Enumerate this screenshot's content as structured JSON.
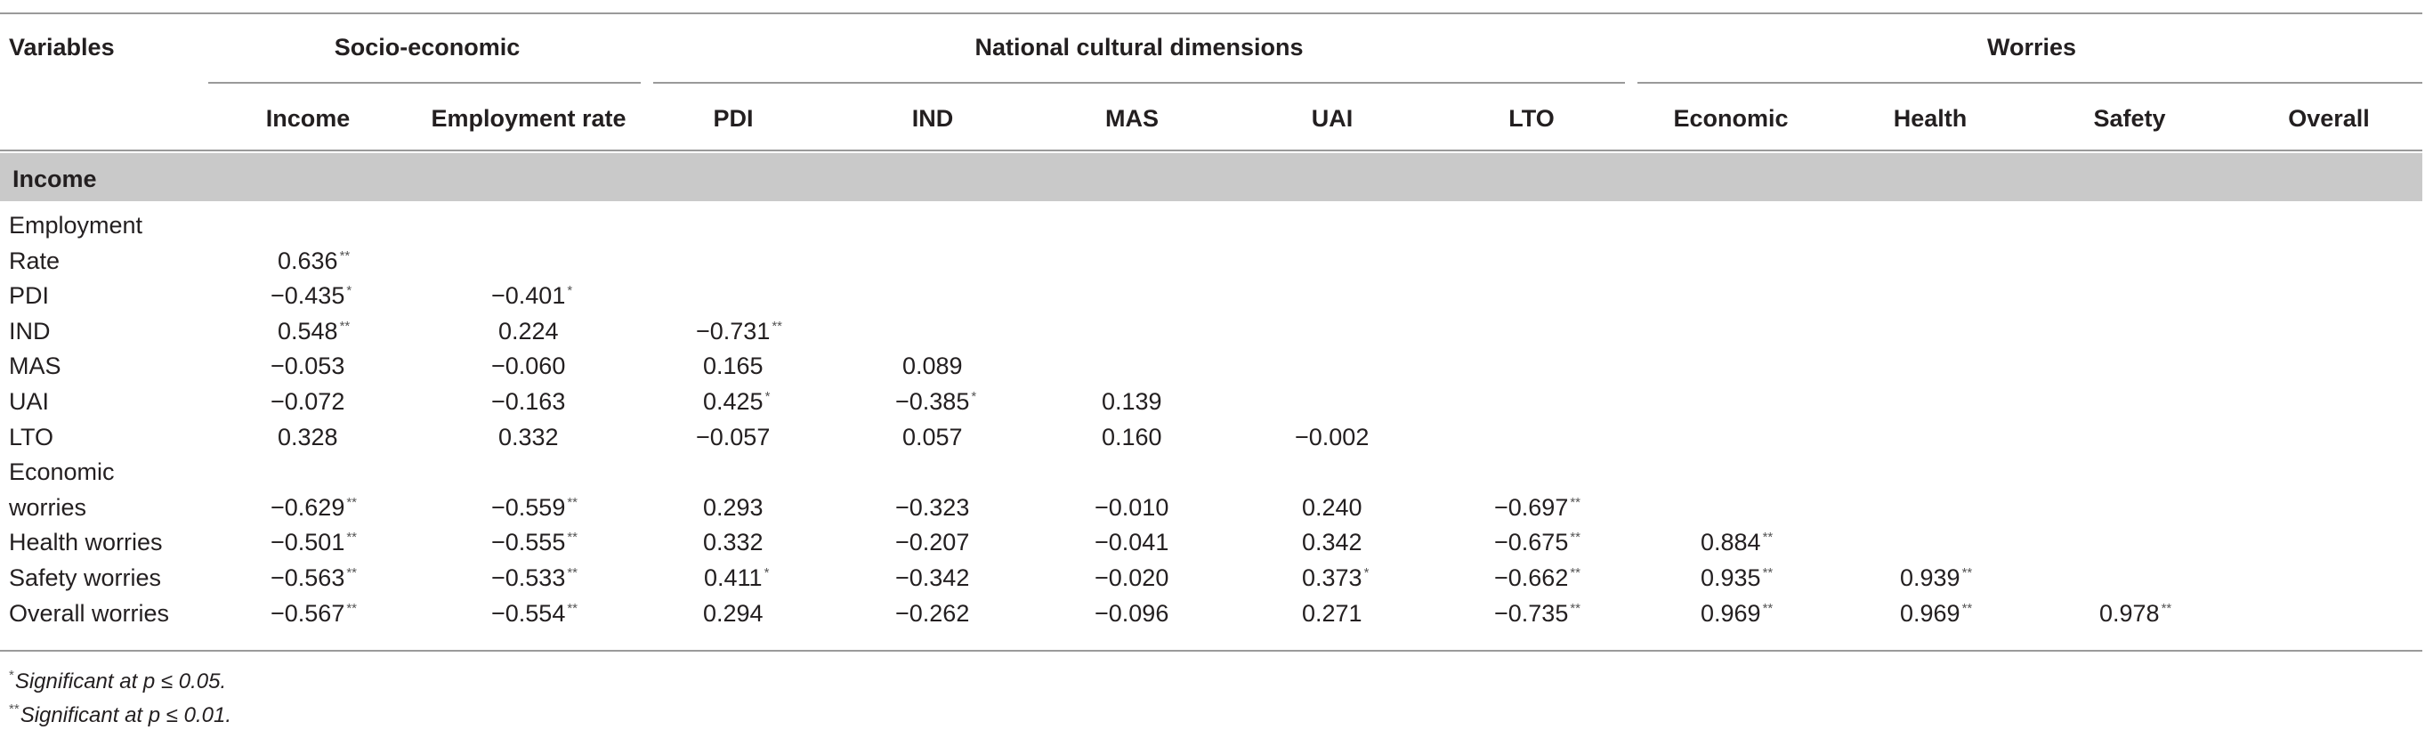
{
  "header": {
    "variables": "Variables",
    "groups": [
      "Socio-economic",
      "National cultural dimensions",
      "Worries"
    ],
    "columns": [
      "Income",
      "Employment rate",
      "PDI",
      "IND",
      "MAS",
      "UAI",
      "LTO",
      "Economic",
      "Health",
      "Safety",
      "Overall"
    ]
  },
  "band_label": "Income",
  "row_labels": [
    "Employment",
    "Rate",
    "PDI",
    "IND",
    "MAS",
    "UAI",
    "LTO",
    "Economic",
    "worries",
    "Health worries",
    "Safety worries",
    "Overall worries"
  ],
  "rows": [
    [],
    [
      {
        "v": "0.636",
        "s": "**"
      }
    ],
    [
      {
        "v": "−0.435",
        "s": "*"
      },
      {
        "v": "−0.401",
        "s": "*"
      }
    ],
    [
      {
        "v": "0.548",
        "s": "**"
      },
      {
        "v": "0.224",
        "s": ""
      },
      {
        "v": "−0.731",
        "s": "**"
      }
    ],
    [
      {
        "v": "−0.053",
        "s": ""
      },
      {
        "v": "−0.060",
        "s": ""
      },
      {
        "v": "0.165",
        "s": ""
      },
      {
        "v": "0.089",
        "s": ""
      }
    ],
    [
      {
        "v": "−0.072",
        "s": ""
      },
      {
        "v": "−0.163",
        "s": ""
      },
      {
        "v": "0.425",
        "s": "*"
      },
      {
        "v": "−0.385",
        "s": "*"
      },
      {
        "v": "0.139",
        "s": ""
      }
    ],
    [
      {
        "v": "0.328",
        "s": ""
      },
      {
        "v": "0.332",
        "s": ""
      },
      {
        "v": "−0.057",
        "s": ""
      },
      {
        "v": "0.057",
        "s": ""
      },
      {
        "v": "0.160",
        "s": ""
      },
      {
        "v": "−0.002",
        "s": ""
      }
    ],
    [],
    [
      {
        "v": "−0.629",
        "s": "**"
      },
      {
        "v": "−0.559",
        "s": "**"
      },
      {
        "v": "0.293",
        "s": ""
      },
      {
        "v": "−0.323",
        "s": ""
      },
      {
        "v": "−0.010",
        "s": ""
      },
      {
        "v": "0.240",
        "s": ""
      },
      {
        "v": "−0.697",
        "s": "**"
      }
    ],
    [
      {
        "v": "−0.501",
        "s": "**"
      },
      {
        "v": "−0.555",
        "s": "**"
      },
      {
        "v": "0.332",
        "s": ""
      },
      {
        "v": "−0.207",
        "s": ""
      },
      {
        "v": "−0.041",
        "s": ""
      },
      {
        "v": "0.342",
        "s": ""
      },
      {
        "v": "−0.675",
        "s": "**"
      },
      {
        "v": "0.884",
        "s": "**"
      }
    ],
    [
      {
        "v": "−0.563",
        "s": "**"
      },
      {
        "v": "−0.533",
        "s": "**"
      },
      {
        "v": "0.411",
        "s": "*"
      },
      {
        "v": "−0.342",
        "s": ""
      },
      {
        "v": "−0.020",
        "s": ""
      },
      {
        "v": "0.373",
        "s": "*"
      },
      {
        "v": "−0.662",
        "s": "**"
      },
      {
        "v": "0.935",
        "s": "**"
      },
      {
        "v": "0.939",
        "s": "**"
      }
    ],
    [
      {
        "v": "−0.567",
        "s": "**"
      },
      {
        "v": "−0.554",
        "s": "**"
      },
      {
        "v": "0.294",
        "s": ""
      },
      {
        "v": "−0.262",
        "s": ""
      },
      {
        "v": "−0.096",
        "s": ""
      },
      {
        "v": "0.271",
        "s": ""
      },
      {
        "v": "−0.735",
        "s": "**"
      },
      {
        "v": "0.969",
        "s": "**"
      },
      {
        "v": "0.969",
        "s": "**"
      },
      {
        "v": "0.978",
        "s": "**"
      }
    ]
  ],
  "notes": [
    {
      "mark": "*",
      "text": "Significant at p ≤ 0.05."
    },
    {
      "mark": "**",
      "text": "Significant at p ≤ 0.01."
    }
  ],
  "colors": {
    "band": "#c9c9c9",
    "rules": "#9a9a9a",
    "text": "#231f20"
  }
}
